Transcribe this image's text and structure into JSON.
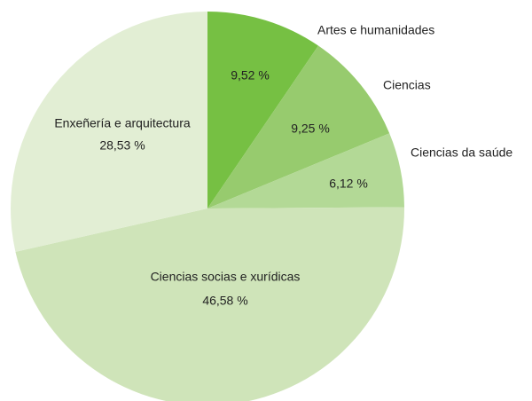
{
  "chart_data": {
    "type": "pie",
    "categories": [
      "Artes e humanidades",
      "Ciencias",
      "Ciencias da saúde",
      "Ciencias socias e xurídicas",
      "Enxeñería e arquitectura"
    ],
    "values": [
      9.52,
      9.25,
      6.12,
      46.58,
      28.53
    ],
    "value_labels": [
      "9,52 %",
      "9,25 %",
      "6,12 %",
      "46,58 %",
      "28,53 %"
    ],
    "colors": [
      "#76c043",
      "#97cb6e",
      "#b3d996",
      "#cfe4b9",
      "#e2eed4"
    ]
  }
}
